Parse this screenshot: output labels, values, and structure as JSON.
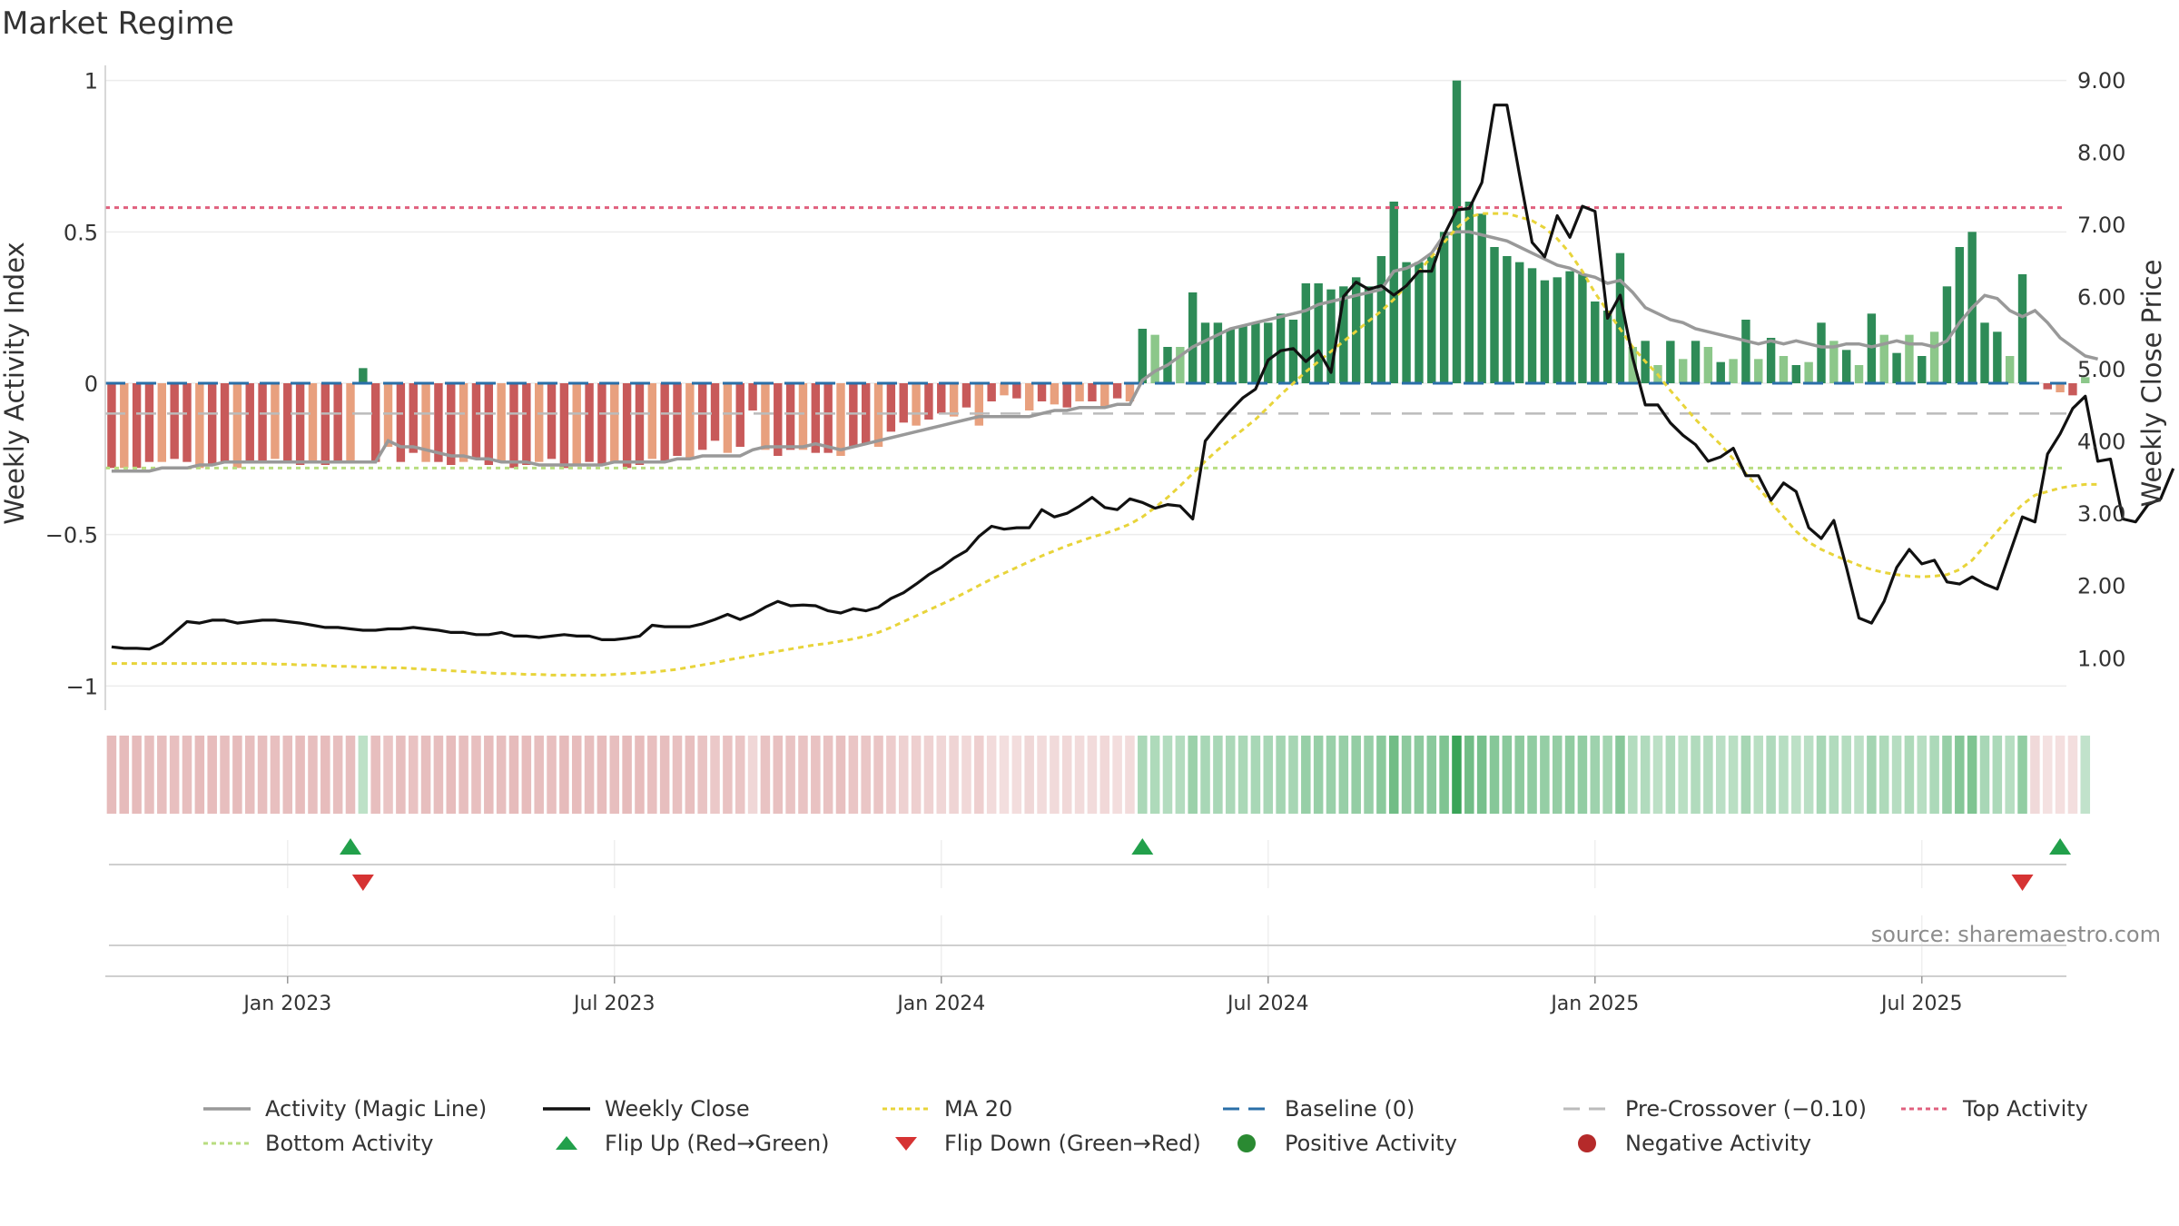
{
  "title": "Market Regime",
  "source": "source: sharemaestro.com",
  "y_left": {
    "label": "Weekly Activity Index",
    "ticks": [
      1,
      0.5,
      0,
      -0.5,
      -1
    ],
    "tick_labels": [
      "1",
      "0.5",
      "0",
      "−0.5",
      "−1"
    ],
    "range": [
      -1.05,
      1.05
    ]
  },
  "y_right": {
    "label": "Weekly Close Price",
    "ticks": [
      9,
      8,
      7,
      6,
      5,
      4,
      3,
      2,
      1
    ],
    "tick_labels": [
      "9.00",
      "8.00",
      "7.00",
      "6.00",
      "5.00",
      "4.00",
      "3.00",
      "2.00",
      "1.00"
    ],
    "range": [
      0.4,
      9.2
    ]
  },
  "x_axis": {
    "labels": [
      "Jan 2023",
      "Jul 2023",
      "Jan 2024",
      "Jul 2024",
      "Jan 2025",
      "Jul 2025"
    ],
    "label_weeks": [
      14,
      40,
      66,
      92,
      118,
      144
    ],
    "n_weeks": 156
  },
  "colors": {
    "strong_pos": "#2e8b57",
    "weak_pos": "#8cc78a",
    "strong_neg": "#c85a5a",
    "weak_neg": "#e8a07e",
    "magic": "#999999",
    "close": "#111111",
    "ma20": "#e8d43a",
    "baseline": "#2a6fa8",
    "precross": "#bbbbbb",
    "top": "#e0607e",
    "bottom": "#b8dd80",
    "flip_up": "#22a04b",
    "flip_down": "#d63333"
  },
  "legend": [
    {
      "key": "magic",
      "label": "Activity (Magic Line)"
    },
    {
      "key": "close",
      "label": "Weekly Close"
    },
    {
      "key": "ma20",
      "label": "MA 20"
    },
    {
      "key": "baseline",
      "label": "Baseline (0)"
    },
    {
      "key": "precross",
      "label": "Pre-Crossover (−0.10)"
    },
    {
      "key": "top",
      "label": "Top Activity"
    },
    {
      "key": "bottom",
      "label": "Bottom Activity"
    },
    {
      "key": "flip_up",
      "label": "Flip Up (Red→Green)"
    },
    {
      "key": "flip_down",
      "label": "Flip Down (Green→Red)"
    },
    {
      "key": "pos",
      "label": "Positive Activity"
    },
    {
      "key": "neg",
      "label": "Negative Activity"
    }
  ],
  "chart_data": {
    "type": "bar",
    "x_unit": "week index (0 = mid-Oct 2022, weekly through Sep 2025)",
    "reference_lines": {
      "baseline": 0,
      "pre_crossover": -0.1,
      "top_activity": 0.58,
      "bottom_activity": -0.28
    },
    "activity": [
      -0.28,
      -0.28,
      -0.28,
      -0.26,
      -0.26,
      -0.25,
      -0.26,
      -0.28,
      -0.27,
      -0.26,
      -0.28,
      -0.26,
      -0.26,
      -0.25,
      -0.26,
      -0.27,
      -0.26,
      -0.27,
      -0.26,
      -0.26,
      0.05,
      -0.26,
      -0.21,
      -0.26,
      -0.23,
      -0.26,
      -0.26,
      -0.27,
      -0.26,
      -0.25,
      -0.27,
      -0.26,
      -0.28,
      -0.27,
      -0.26,
      -0.25,
      -0.28,
      -0.27,
      -0.26,
      -0.27,
      -0.26,
      -0.28,
      -0.27,
      -0.25,
      -0.26,
      -0.24,
      -0.25,
      -0.22,
      -0.19,
      -0.23,
      -0.21,
      -0.09,
      -0.22,
      -0.24,
      -0.22,
      -0.22,
      -0.23,
      -0.23,
      -0.24,
      -0.21,
      -0.2,
      -0.21,
      -0.16,
      -0.13,
      -0.14,
      -0.12,
      -0.1,
      -0.11,
      -0.08,
      -0.14,
      -0.06,
      -0.04,
      -0.05,
      -0.09,
      -0.06,
      -0.07,
      -0.08,
      -0.06,
      -0.06,
      -0.08,
      -0.05,
      -0.06,
      0.18,
      0.16,
      0.12,
      0.12,
      0.3,
      0.2,
      0.2,
      0.18,
      0.19,
      0.2,
      0.2,
      0.23,
      0.21,
      0.33,
      0.33,
      0.31,
      0.32,
      0.35,
      0.32,
      0.42,
      0.6,
      0.4,
      0.4,
      0.42,
      0.5,
      1.0,
      0.6,
      0.56,
      0.45,
      0.42,
      0.4,
      0.38,
      0.34,
      0.35,
      0.37,
      0.36,
      0.27,
      0.24,
      0.43,
      0.12,
      0.14,
      0.06,
      0.14,
      0.08,
      0.14,
      0.12,
      0.07,
      0.08,
      0.21,
      0.08,
      0.15,
      0.09,
      0.06,
      0.07,
      0.2,
      0.14,
      0.11,
      0.06,
      0.23,
      0.16,
      0.1,
      0.16,
      0.09,
      0.17,
      0.32,
      0.45,
      0.5,
      0.2,
      0.17,
      0.09,
      0.36,
      0.0,
      -0.02,
      -0.03,
      -0.04,
      0.02
    ],
    "magic_line": [
      -0.29,
      -0.29,
      -0.29,
      -0.29,
      -0.28,
      -0.28,
      -0.28,
      -0.27,
      -0.27,
      -0.26,
      -0.26,
      -0.26,
      -0.26,
      -0.26,
      -0.26,
      -0.26,
      -0.26,
      -0.26,
      -0.26,
      -0.26,
      -0.26,
      -0.26,
      -0.19,
      -0.21,
      -0.21,
      -0.22,
      -0.23,
      -0.24,
      -0.24,
      -0.25,
      -0.25,
      -0.26,
      -0.26,
      -0.26,
      -0.27,
      -0.27,
      -0.27,
      -0.27,
      -0.27,
      -0.27,
      -0.26,
      -0.26,
      -0.26,
      -0.26,
      -0.26,
      -0.25,
      -0.25,
      -0.24,
      -0.24,
      -0.24,
      -0.24,
      -0.22,
      -0.21,
      -0.21,
      -0.21,
      -0.21,
      -0.2,
      -0.21,
      -0.22,
      -0.21,
      -0.2,
      -0.19,
      -0.18,
      -0.17,
      -0.16,
      -0.15,
      -0.14,
      -0.13,
      -0.12,
      -0.11,
      -0.11,
      -0.11,
      -0.11,
      -0.11,
      -0.1,
      -0.09,
      -0.09,
      -0.08,
      -0.08,
      -0.08,
      -0.07,
      -0.07,
      0.01,
      0.04,
      0.06,
      0.09,
      0.12,
      0.14,
      0.16,
      0.18,
      0.19,
      0.2,
      0.21,
      0.22,
      0.23,
      0.24,
      0.26,
      0.27,
      0.28,
      0.29,
      0.3,
      0.31,
      0.37,
      0.38,
      0.4,
      0.43,
      0.49,
      0.5,
      0.5,
      0.49,
      0.48,
      0.47,
      0.45,
      0.43,
      0.41,
      0.39,
      0.38,
      0.36,
      0.35,
      0.33,
      0.34,
      0.3,
      0.25,
      0.23,
      0.21,
      0.2,
      0.18,
      0.17,
      0.16,
      0.15,
      0.14,
      0.13,
      0.14,
      0.13,
      0.14,
      0.13,
      0.12,
      0.12,
      0.13,
      0.13,
      0.12,
      0.13,
      0.14,
      0.13,
      0.13,
      0.12,
      0.14,
      0.2,
      0.25,
      0.29,
      0.28,
      0.24,
      0.22,
      0.24,
      0.2,
      0.15,
      0.12,
      0.09,
      0.08
    ],
    "weekly_close": [
      1.15,
      1.13,
      1.13,
      1.12,
      1.2,
      1.35,
      1.5,
      1.48,
      1.52,
      1.52,
      1.48,
      1.5,
      1.52,
      1.52,
      1.5,
      1.48,
      1.45,
      1.42,
      1.42,
      1.4,
      1.38,
      1.38,
      1.4,
      1.4,
      1.42,
      1.4,
      1.38,
      1.35,
      1.35,
      1.32,
      1.32,
      1.35,
      1.3,
      1.3,
      1.28,
      1.3,
      1.32,
      1.3,
      1.3,
      1.25,
      1.25,
      1.27,
      1.3,
      1.45,
      1.43,
      1.43,
      1.43,
      1.47,
      1.53,
      1.6,
      1.53,
      1.6,
      1.7,
      1.78,
      1.72,
      1.73,
      1.72,
      1.65,
      1.62,
      1.68,
      1.65,
      1.7,
      1.82,
      1.9,
      2.02,
      2.15,
      2.25,
      2.38,
      2.48,
      2.68,
      2.82,
      2.78,
      2.8,
      2.8,
      3.05,
      2.95,
      3.0,
      3.1,
      3.22,
      3.08,
      3.05,
      3.2,
      3.15,
      3.07,
      3.12,
      3.1,
      2.92,
      4.0,
      4.22,
      4.42,
      4.6,
      4.72,
      5.12,
      5.25,
      5.28,
      5.1,
      5.25,
      4.95,
      6.0,
      6.2,
      6.1,
      6.15,
      6.02,
      6.15,
      6.35,
      6.35,
      6.85,
      7.2,
      7.22,
      7.58,
      8.65,
      8.65,
      7.68,
      6.75,
      6.55,
      7.12,
      6.82,
      7.25,
      7.18,
      5.7,
      6.02,
      5.15,
      4.5,
      4.5,
      4.25,
      4.08,
      3.95,
      3.72,
      3.78,
      3.9,
      3.52,
      3.52,
      3.18,
      3.42,
      3.3,
      2.8,
      2.65,
      2.9,
      2.25,
      1.55,
      1.48,
      1.78,
      2.25,
      2.5,
      2.3,
      2.35,
      2.05,
      2.02,
      2.12,
      2.02,
      1.95,
      2.45,
      2.95,
      2.88,
      3.82,
      4.1,
      4.45,
      4.62,
      3.72,
      3.75,
      2.92,
      2.88,
      3.12,
      3.2,
      3.62
    ],
    "ma20": [
      0.92,
      0.92,
      0.92,
      0.92,
      0.92,
      0.92,
      0.92,
      0.92,
      0.92,
      0.92,
      0.92,
      0.92,
      0.92,
      0.91,
      0.91,
      0.9,
      0.9,
      0.89,
      0.88,
      0.88,
      0.87,
      0.87,
      0.86,
      0.86,
      0.85,
      0.84,
      0.83,
      0.82,
      0.81,
      0.8,
      0.79,
      0.78,
      0.78,
      0.77,
      0.77,
      0.76,
      0.76,
      0.76,
      0.76,
      0.76,
      0.77,
      0.78,
      0.79,
      0.8,
      0.82,
      0.84,
      0.87,
      0.9,
      0.93,
      0.97,
      1.0,
      1.03,
      1.06,
      1.09,
      1.12,
      1.15,
      1.18,
      1.2,
      1.23,
      1.26,
      1.3,
      1.35,
      1.42,
      1.5,
      1.58,
      1.66,
      1.74,
      1.82,
      1.91,
      2.0,
      2.09,
      2.17,
      2.25,
      2.33,
      2.41,
      2.48,
      2.55,
      2.61,
      2.67,
      2.72,
      2.78,
      2.85,
      2.95,
      3.08,
      3.22,
      3.38,
      3.55,
      3.72,
      3.88,
      4.02,
      4.16,
      4.3,
      4.47,
      4.64,
      4.8,
      4.96,
      5.1,
      5.24,
      5.38,
      5.52,
      5.66,
      5.8,
      5.96,
      6.15,
      6.35,
      6.55,
      6.75,
      6.95,
      7.1,
      7.15,
      7.15,
      7.15,
      7.1,
      7.05,
      6.95,
      6.8,
      6.6,
      6.35,
      6.05,
      5.8,
      5.55,
      5.3,
      5.1,
      4.92,
      4.7,
      4.5,
      4.3,
      4.12,
      3.95,
      3.75,
      3.55,
      3.35,
      3.15,
      2.95,
      2.75,
      2.6,
      2.5,
      2.42,
      2.35,
      2.28,
      2.22,
      2.18,
      2.15,
      2.13,
      2.12,
      2.13,
      2.15,
      2.22,
      2.35,
      2.55,
      2.75,
      2.95,
      3.12,
      3.25,
      3.3,
      3.35,
      3.38,
      3.4,
      3.4
    ],
    "flip_up_weeks": [
      19,
      82,
      155
    ],
    "flip_down_weeks": [
      20,
      152
    ]
  }
}
